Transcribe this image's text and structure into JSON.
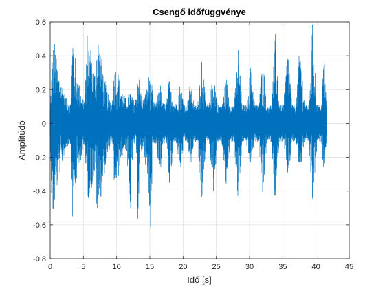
{
  "chart_data": {
    "type": "line",
    "title": "Csengő időfüggvénye",
    "xlabel": "Idő [s]",
    "ylabel": "Amplitúdó",
    "xlim": [
      0,
      45
    ],
    "ylim": [
      -0.8,
      0.6
    ],
    "xticks": [
      0,
      5,
      10,
      15,
      20,
      25,
      30,
      35,
      40,
      45
    ],
    "yticks": [
      0.6,
      0.4,
      0.2,
      0,
      -0.2,
      -0.4,
      -0.6,
      -0.8
    ],
    "xtick_labels": [
      "0",
      "5",
      "10",
      "15",
      "20",
      "25",
      "30",
      "35",
      "40",
      "45"
    ],
    "ytick_labels": [
      "0.6",
      "0.4",
      "0.2",
      "0",
      "-0.2",
      "-0.4",
      "-0.6",
      "-0.8"
    ],
    "grid": true,
    "series_color": "#0072BD",
    "signal_end_s": 41.6,
    "noise_floor": 0.06,
    "series": [
      {
        "envelope_keypoints": {
          "x": [
            0.0,
            0.3,
            0.6,
            1.0,
            1.3,
            1.7,
            2.0,
            2.5,
            3.1,
            3.4,
            3.8,
            4.2,
            4.6,
            5.0,
            5.2,
            5.6,
            6.1,
            6.7,
            7.1,
            7.5,
            8.0,
            8.5,
            9.0,
            9.3,
            9.7,
            10.3,
            10.6,
            11.0,
            11.5,
            12.0,
            12.5,
            12.9,
            13.2,
            13.6,
            14.0,
            14.5,
            15.1,
            15.5,
            16.0,
            16.5,
            17.0,
            17.5,
            18.0,
            18.6,
            19.0,
            19.6,
            20.1,
            20.6,
            21.1,
            21.7,
            22.2,
            22.8,
            23.4,
            23.9,
            24.6,
            25.2,
            25.8,
            26.5,
            27.1,
            27.7,
            28.3,
            28.9,
            29.5,
            30.2,
            30.8,
            31.4,
            32.0,
            32.6,
            33.3,
            33.9,
            34.5,
            35.1,
            35.8,
            36.4,
            37.0,
            37.6,
            38.3,
            38.9,
            39.5,
            40.2,
            40.8,
            41.2,
            41.6
          ],
          "y_max": [
            0.08,
            0.4,
            0.52,
            0.36,
            0.3,
            0.24,
            0.2,
            0.14,
            0.12,
            0.55,
            0.38,
            0.26,
            0.2,
            0.15,
            0.14,
            0.54,
            0.46,
            0.3,
            0.55,
            0.46,
            0.32,
            0.2,
            0.14,
            0.12,
            0.35,
            0.3,
            0.22,
            0.18,
            0.14,
            0.2,
            0.14,
            0.15,
            0.34,
            0.2,
            0.14,
            0.2,
            0.34,
            0.13,
            0.12,
            0.26,
            0.12,
            0.12,
            0.3,
            0.12,
            0.12,
            0.25,
            0.12,
            0.11,
            0.25,
            0.11,
            0.11,
            0.45,
            0.12,
            0.11,
            0.32,
            0.11,
            0.11,
            0.28,
            0.11,
            0.11,
            0.47,
            0.11,
            0.11,
            0.35,
            0.11,
            0.11,
            0.4,
            0.11,
            0.11,
            0.55,
            0.11,
            0.11,
            0.48,
            0.11,
            0.11,
            0.5,
            0.11,
            0.11,
            0.62,
            0.11,
            0.11,
            0.44,
            0.1
          ],
          "y_min": [
            -0.08,
            -0.62,
            -0.5,
            -0.4,
            -0.32,
            -0.26,
            -0.2,
            -0.14,
            -0.12,
            -0.64,
            -0.4,
            -0.28,
            -0.22,
            -0.16,
            -0.14,
            -0.46,
            -0.42,
            -0.3,
            -0.58,
            -0.5,
            -0.34,
            -0.22,
            -0.14,
            -0.12,
            -0.4,
            -0.32,
            -0.24,
            -0.18,
            -0.14,
            -0.62,
            -0.16,
            -0.15,
            -0.62,
            -0.2,
            -0.14,
            -0.3,
            -0.62,
            -0.13,
            -0.12,
            -0.35,
            -0.12,
            -0.12,
            -0.4,
            -0.12,
            -0.12,
            -0.3,
            -0.12,
            -0.11,
            -0.27,
            -0.11,
            -0.11,
            -0.58,
            -0.12,
            -0.11,
            -0.42,
            -0.11,
            -0.11,
            -0.4,
            -0.11,
            -0.11,
            -0.55,
            -0.11,
            -0.11,
            -0.28,
            -0.11,
            -0.11,
            -0.48,
            -0.11,
            -0.11,
            -0.51,
            -0.11,
            -0.11,
            -0.35,
            -0.11,
            -0.11,
            -0.3,
            -0.11,
            -0.11,
            -0.5,
            -0.11,
            -0.11,
            -0.3,
            -0.1
          ]
        }
      }
    ]
  }
}
